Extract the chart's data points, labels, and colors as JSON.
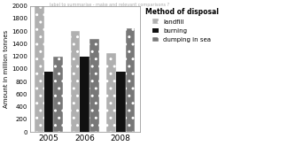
{
  "years": [
    "2005",
    "2006",
    "2008"
  ],
  "landfill": [
    2000,
    1600,
    1250
  ],
  "burning": [
    950,
    1200,
    950
  ],
  "dumping_in_sea": [
    1200,
    1470,
    1650
  ],
  "bar_colors": {
    "landfill": "#b0b0b0",
    "burning": "#111111",
    "dumping_in_sea": "#787878"
  },
  "bar_hatches": {
    "landfill": "..",
    "burning": "",
    "dumping_in_sea": ".."
  },
  "ylabel": "Amount in million tonnes",
  "legend_title": "Method of disposal",
  "legend_labels": [
    "landfill",
    "burning",
    "dumping in sea"
  ],
  "ylim": [
    0,
    2000
  ],
  "yticks": [
    0,
    100,
    200,
    300,
    400,
    500,
    600,
    700,
    800,
    900,
    1000,
    1100,
    1200,
    1300,
    1400,
    1500,
    1600,
    1700,
    1800,
    1900,
    2000
  ],
  "background_color": "#ffffff",
  "title": "label to summarise - make and relevant comparisons ?"
}
